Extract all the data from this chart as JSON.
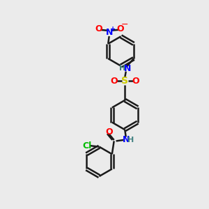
{
  "bg_color": "#ebebeb",
  "bond_color": "#1a1a1a",
  "N_color": "#0000ff",
  "O_color": "#ff0000",
  "S_color": "#cccc00",
  "Cl_color": "#00bb00",
  "H_color": "#408080",
  "line_width": 1.8,
  "fig_size": [
    3.0,
    3.0
  ],
  "dpi": 100,
  "xlim": [
    0,
    10
  ],
  "ylim": [
    0,
    10
  ]
}
